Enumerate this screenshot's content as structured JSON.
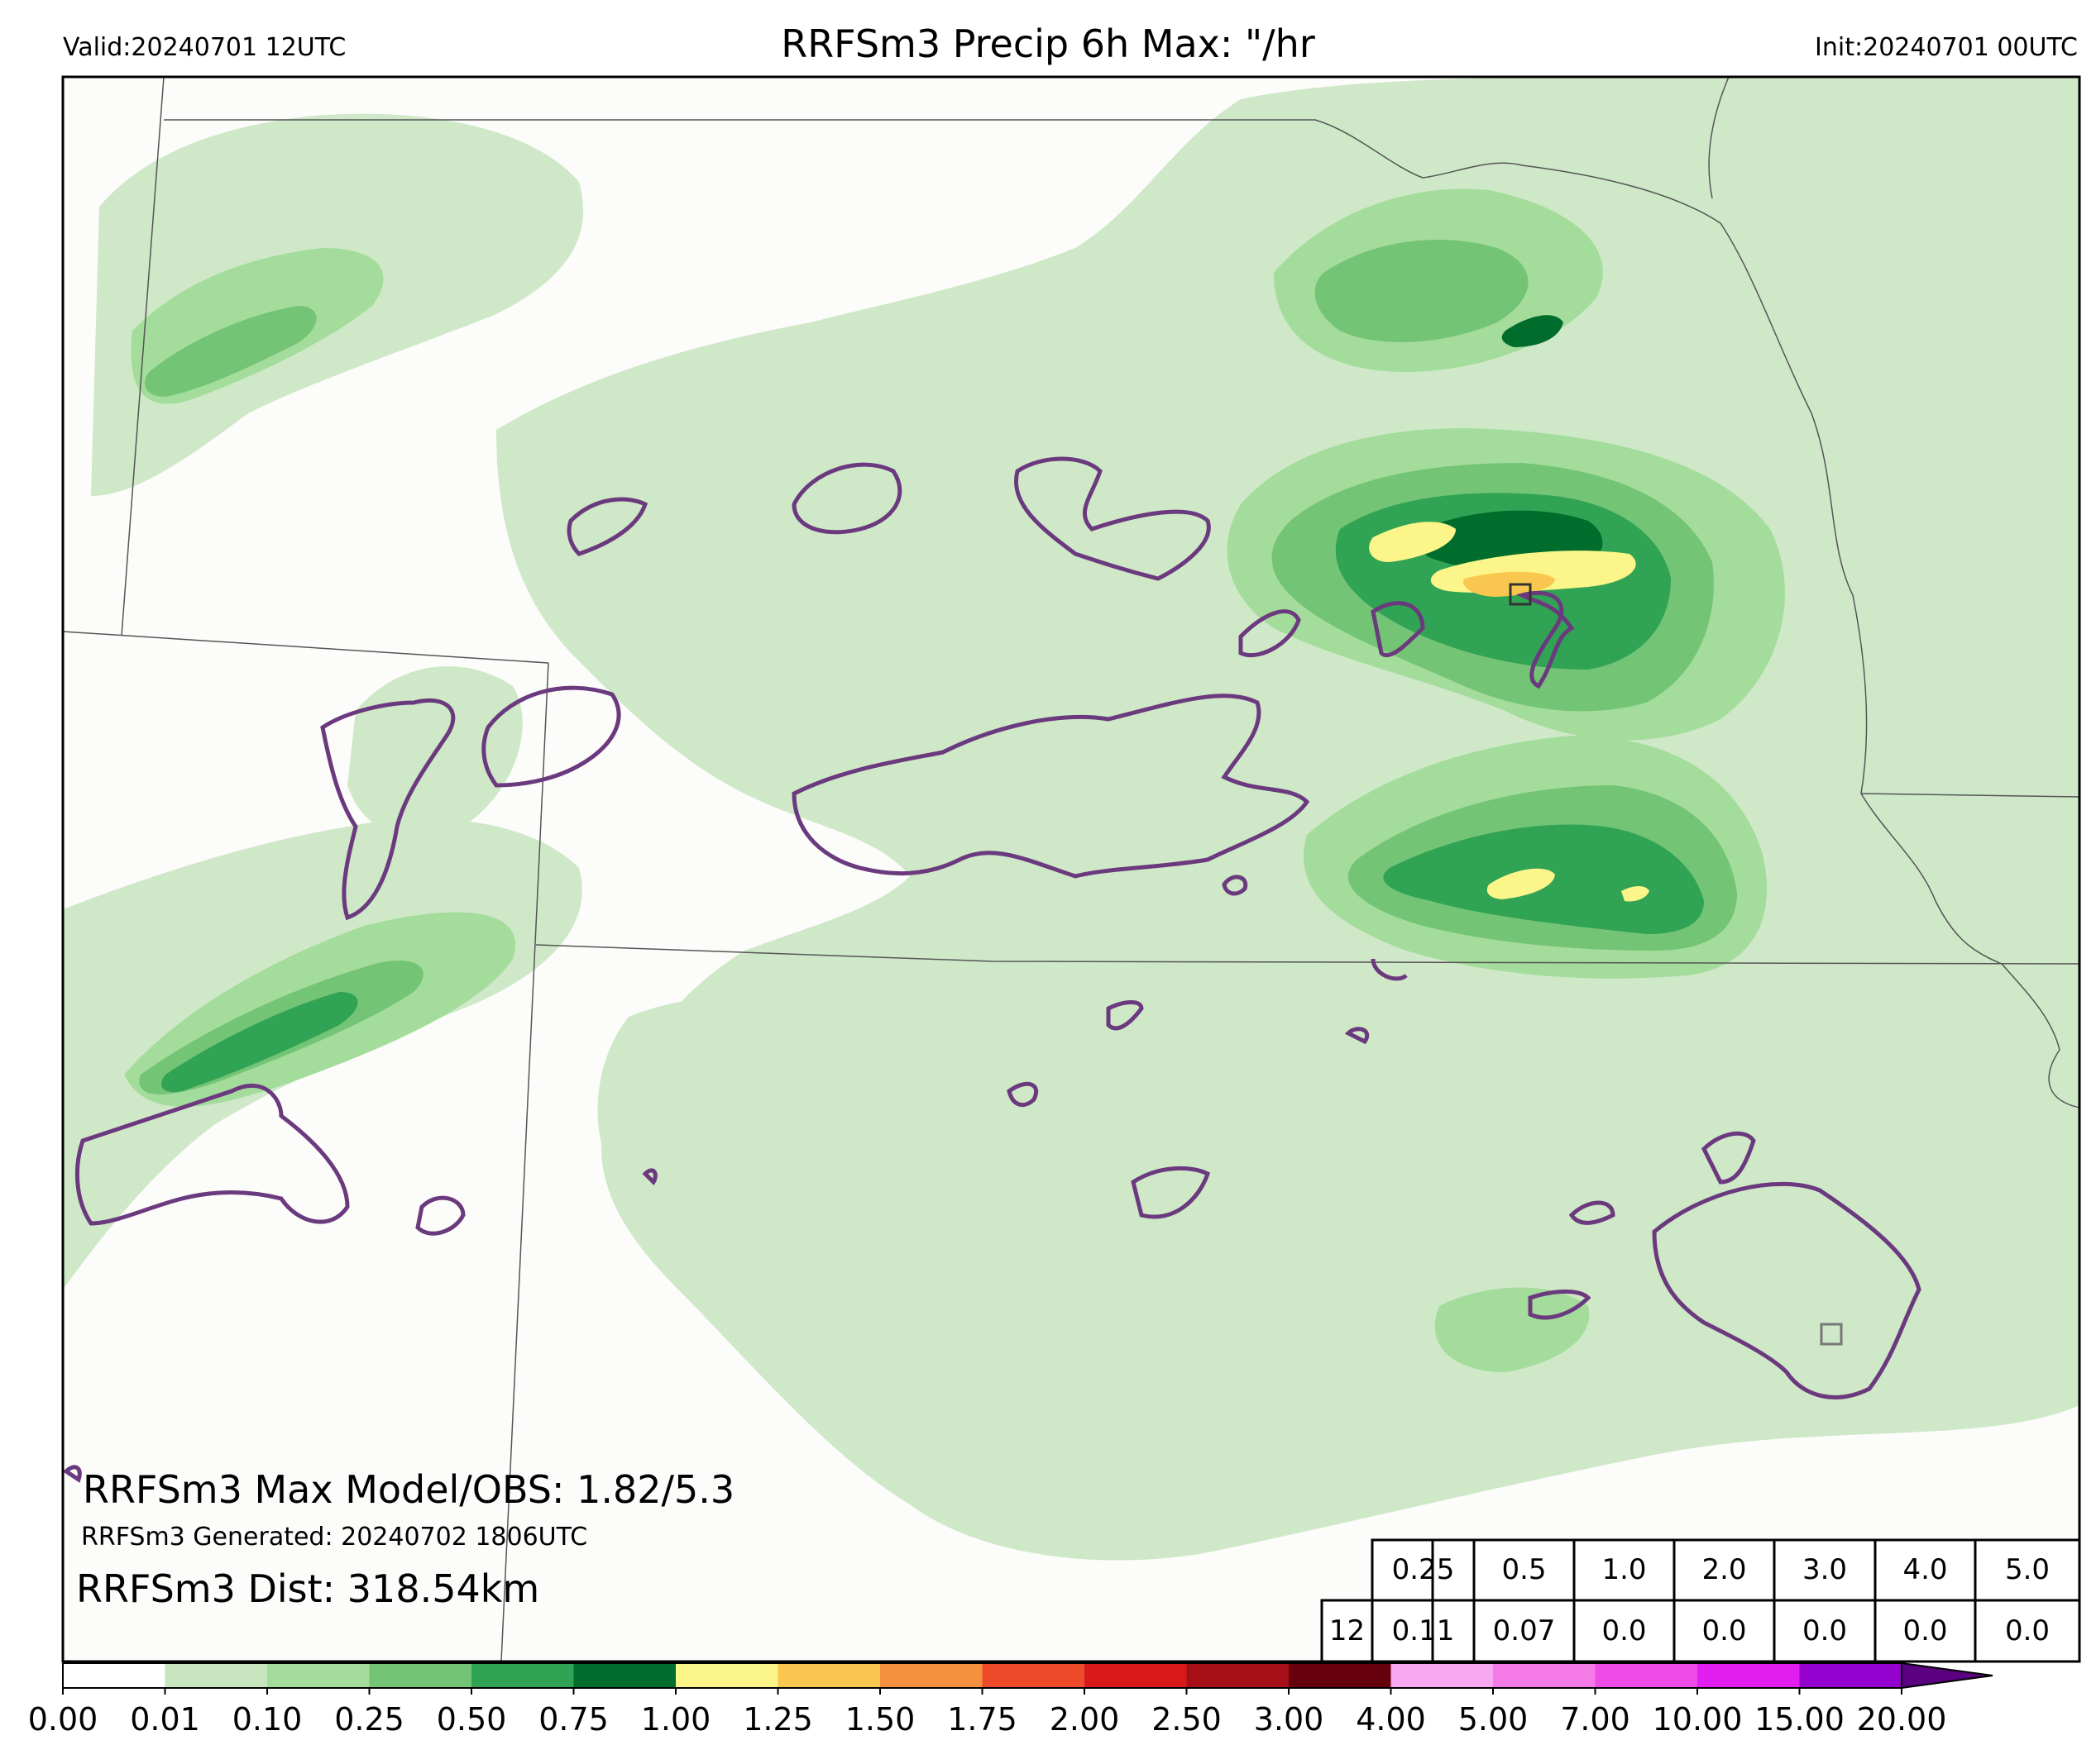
{
  "header": {
    "valid": "Valid:20240701 12UTC",
    "title": "RRFSm3 Precip 6h Max: \"/hr",
    "init": "Init:20240701 00UTC"
  },
  "annotations": {
    "max_model_obs": "RRFSm3 Max Model/OBS: 1.82/5.3",
    "generated": "RRFSm3 Generated: 20240702 1806UTC",
    "distance": "RRFSm3 Dist: 318.54km"
  },
  "threshold_table": {
    "thresholds": [
      "0.25",
      "0.5",
      "1.0",
      "2.0",
      "3.0",
      "4.0",
      "5.0"
    ],
    "row_label": "12",
    "values": [
      "0.11",
      "0.07",
      "0.0",
      "0.0",
      "0.0",
      "0.0",
      "0.0"
    ]
  },
  "colorbar": {
    "ticks": [
      "0.00",
      "0.01",
      "0.10",
      "0.25",
      "0.50",
      "0.75",
      "1.00",
      "1.25",
      "1.50",
      "1.75",
      "2.00",
      "2.50",
      "3.00",
      "4.00",
      "5.00",
      "7.00",
      "10.00",
      "15.00",
      "20.00"
    ],
    "colors": [
      "#ffffff",
      "#c7e6c0",
      "#a3dc9b",
      "#74c476",
      "#31a354",
      "#006d2c",
      "#fbf58a",
      "#f9c74f",
      "#f5903f",
      "#ef4a2a",
      "#d7191c",
      "#a50f15",
      "#67000d",
      "#f7a8f0",
      "#f47ae8",
      "#ef4be6",
      "#e01ef0",
      "#9400cd"
    ],
    "extend_color": "#5a0080"
  },
  "colors": {
    "land": "#fcfcfa",
    "obs_contour": "#6b3a7e",
    "border": "#555555"
  }
}
